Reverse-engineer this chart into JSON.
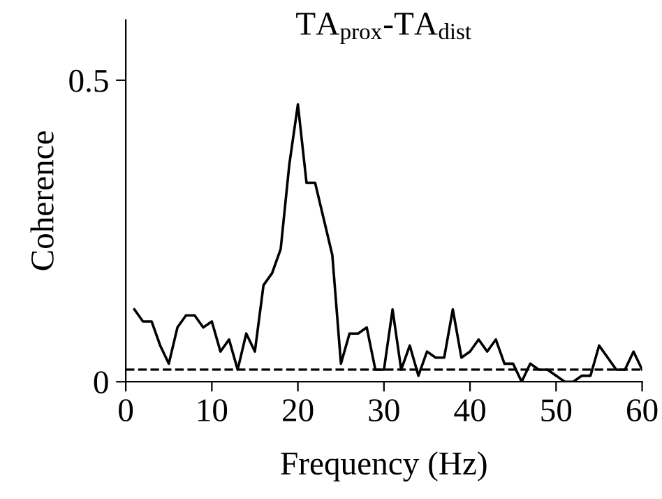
{
  "chart_data": {
    "type": "line",
    "title": "TA$_{prox}$-TA$_{dist}$",
    "xlabel": "Frequency (Hz)",
    "ylabel": "Coherence",
    "x": [
      1,
      2,
      3,
      4,
      5,
      6,
      7,
      8,
      9,
      10,
      11,
      12,
      13,
      14,
      15,
      16,
      17,
      18,
      19,
      20,
      21,
      22,
      23,
      24,
      25,
      26,
      27,
      28,
      29,
      30,
      31,
      32,
      33,
      34,
      35,
      36,
      37,
      38,
      39,
      40,
      41,
      42,
      43,
      44,
      45,
      46,
      47,
      48,
      49,
      50,
      51,
      52,
      53,
      54,
      55,
      56,
      57,
      58,
      59,
      60
    ],
    "series": [
      {
        "color": "#000000",
        "values": [
          0.12,
          0.1,
          0.1,
          0.06,
          0.03,
          0.09,
          0.11,
          0.11,
          0.09,
          0.1,
          0.05,
          0.07,
          0.02,
          0.08,
          0.05,
          0.16,
          0.18,
          0.22,
          0.36,
          0.46,
          0.33,
          0.33,
          0.27,
          0.21,
          0.03,
          0.08,
          0.08,
          0.09,
          0.02,
          0.02,
          0.12,
          0.02,
          0.06,
          0.01,
          0.05,
          0.04,
          0.04,
          0.12,
          0.04,
          0.05,
          0.07,
          0.05,
          0.07,
          0.03,
          0.03,
          0.0,
          0.03,
          0.02,
          0.02,
          0.01,
          0.0,
          0.0,
          0.01,
          0.01,
          0.06,
          0.04,
          0.02,
          0.02,
          0.05,
          0.02
        ]
      }
    ],
    "xlim": [
      0,
      60
    ],
    "ylim": [
      0,
      0.6
    ],
    "xticks": [
      0,
      10,
      20,
      30,
      40,
      50,
      60
    ],
    "yticks": [
      0,
      0.5
    ],
    "ref_lines": [
      {
        "axis": "y",
        "value": 0.02,
        "color": "#000000",
        "line_style": "dashed"
      }
    ],
    "grid": false,
    "legend": false,
    "marker": "none",
    "line_style": "solid"
  }
}
